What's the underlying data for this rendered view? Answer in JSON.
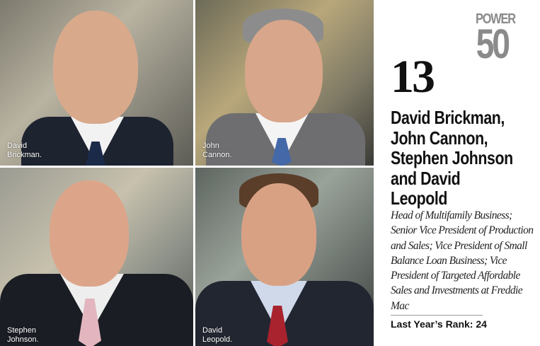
{
  "photos": [
    {
      "caption": "David Brickman."
    },
    {
      "caption": "John Cannon."
    },
    {
      "caption": "Stephen Johnson."
    },
    {
      "caption": "David Leopold."
    }
  ],
  "logo": {
    "word": "POWER",
    "number": "50",
    "color": "#8a8a8a"
  },
  "rank": "13",
  "names": [
    "David Brickman,",
    "John Cannon,",
    "Stephen Johnson",
    "and David",
    "Leopold"
  ],
  "titles": "Head of Multifamily Business; Senior Vice President of Production and Sales; Vice President of Small Balance Loan Business; Vice President of Targeted Affordable Sales and Investments at Freddie Mac",
  "last_year_rank": "Last Year’s Rank: 24"
}
